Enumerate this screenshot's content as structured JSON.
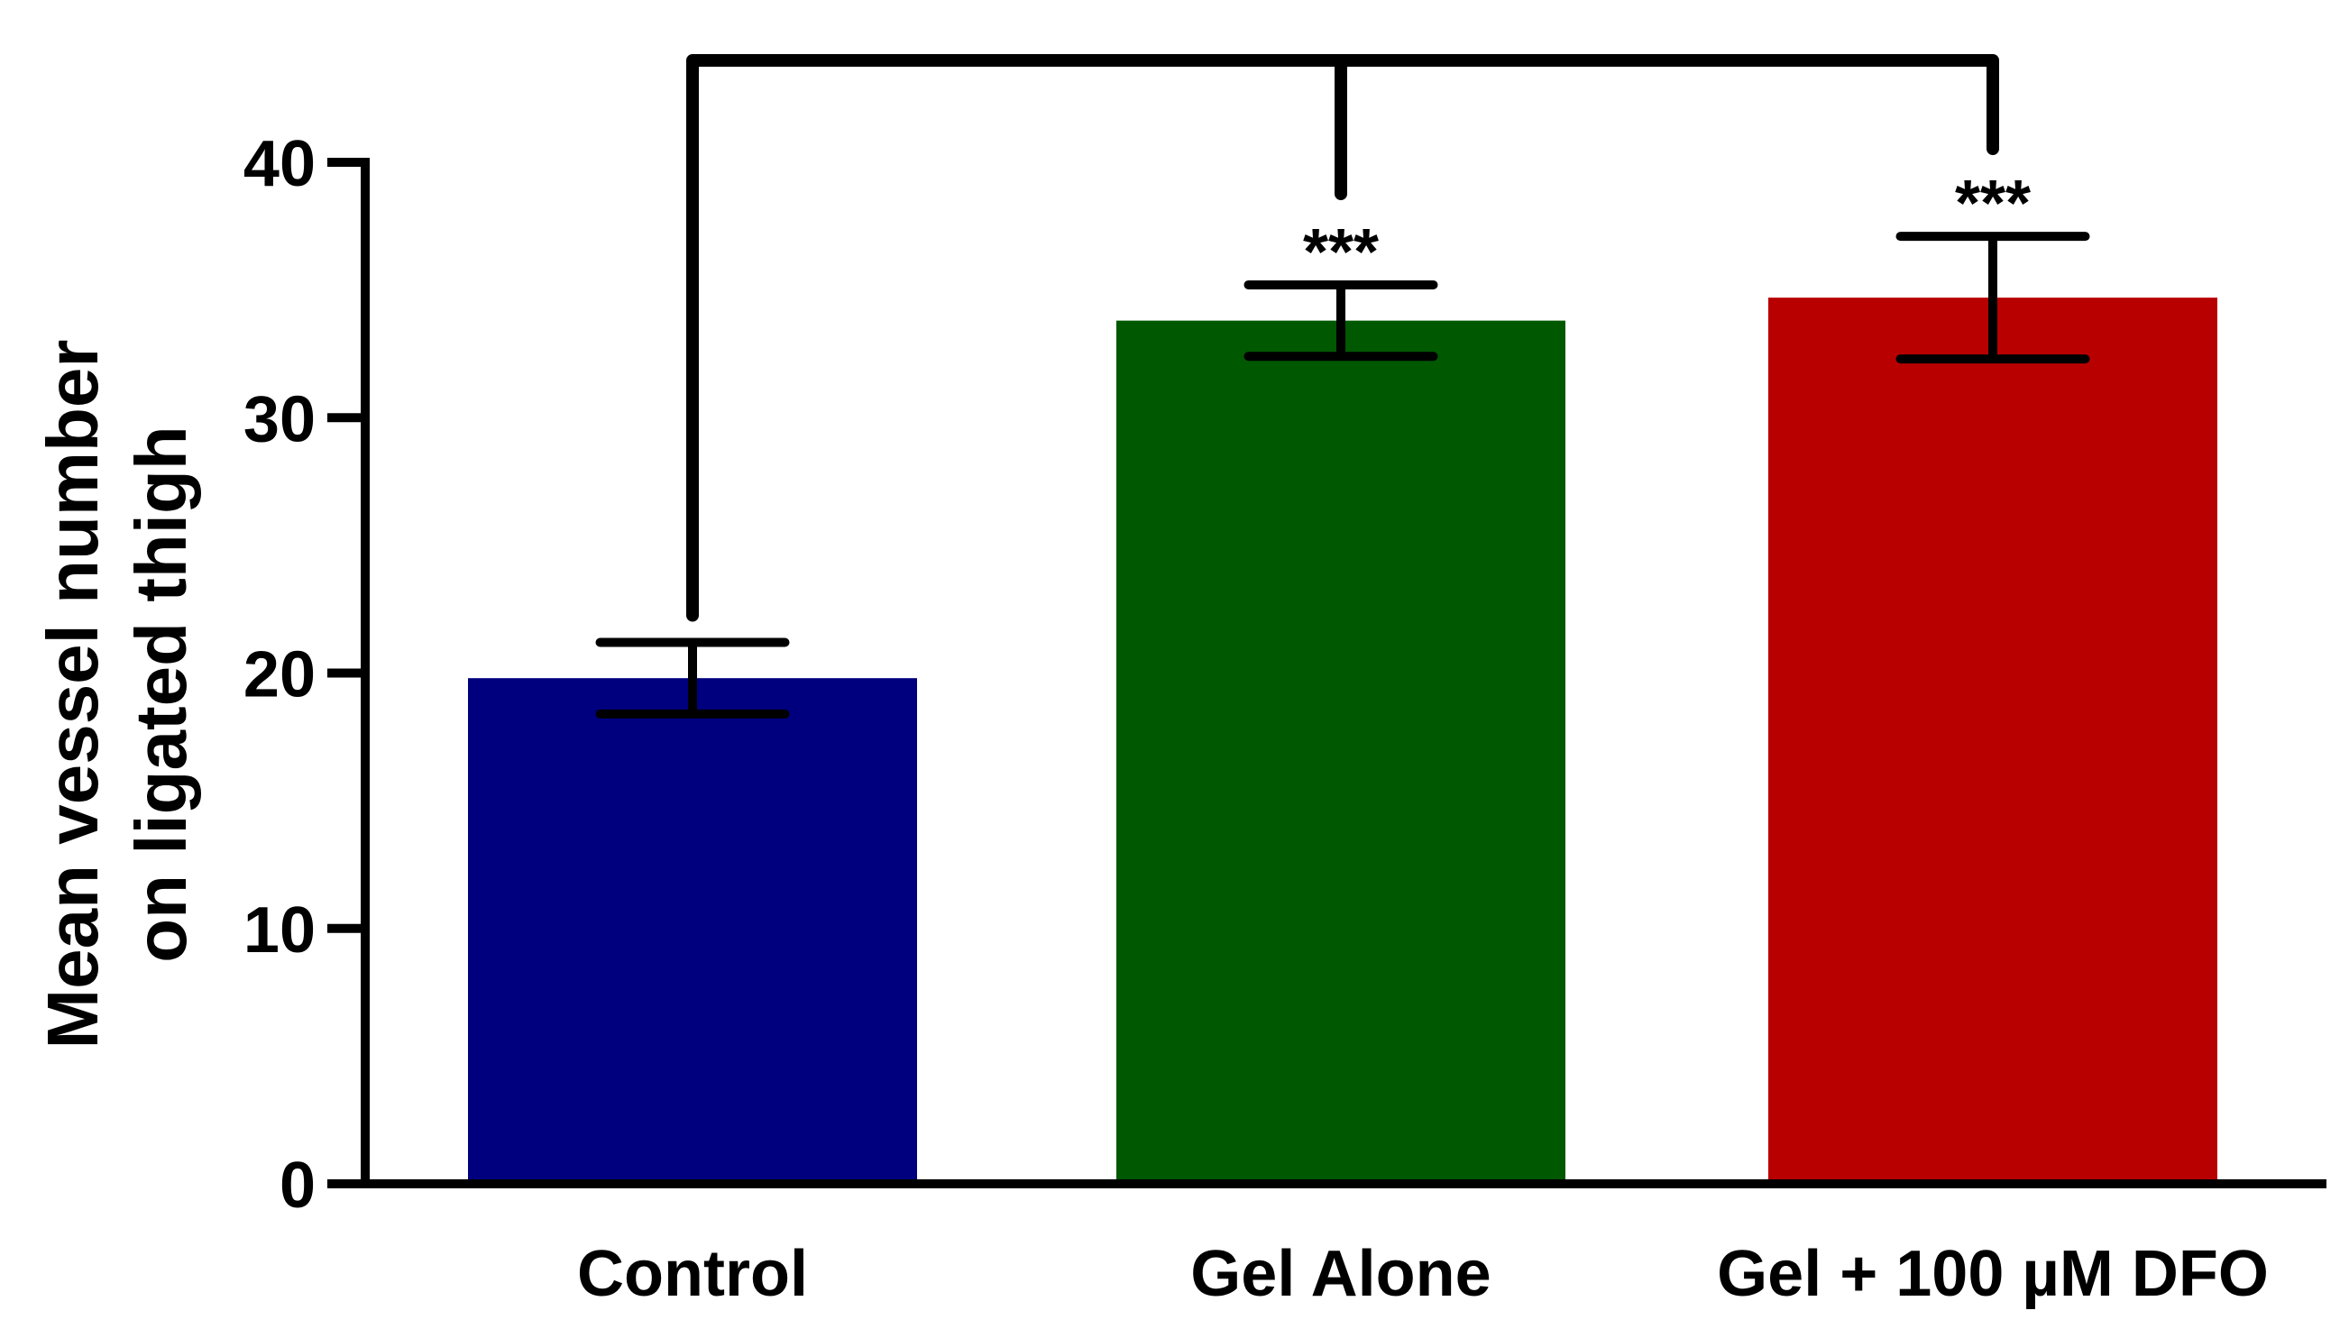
{
  "chart_data": {
    "type": "bar",
    "title": "",
    "xlabel": "",
    "ylabel_lines": [
      "Mean vessel number",
      "on ligated thigh"
    ],
    "categories": [
      "Control",
      "Gel Alone",
      "Gel + 100 µM DFO"
    ],
    "values": [
      19.8,
      33.8,
      34.7
    ],
    "errors": [
      1.4,
      1.4,
      2.4
    ],
    "colors": [
      "#00007f",
      "#005800",
      "#b80000"
    ],
    "ylim": [
      0,
      40
    ],
    "yticks": [
      "0",
      "10",
      "20",
      "30",
      "40"
    ],
    "grid": false,
    "significance": {
      "labels": [
        "",
        "***",
        "***"
      ],
      "bracket": "Control vs Gel Alone and Gel + 100 µM DFO"
    }
  }
}
